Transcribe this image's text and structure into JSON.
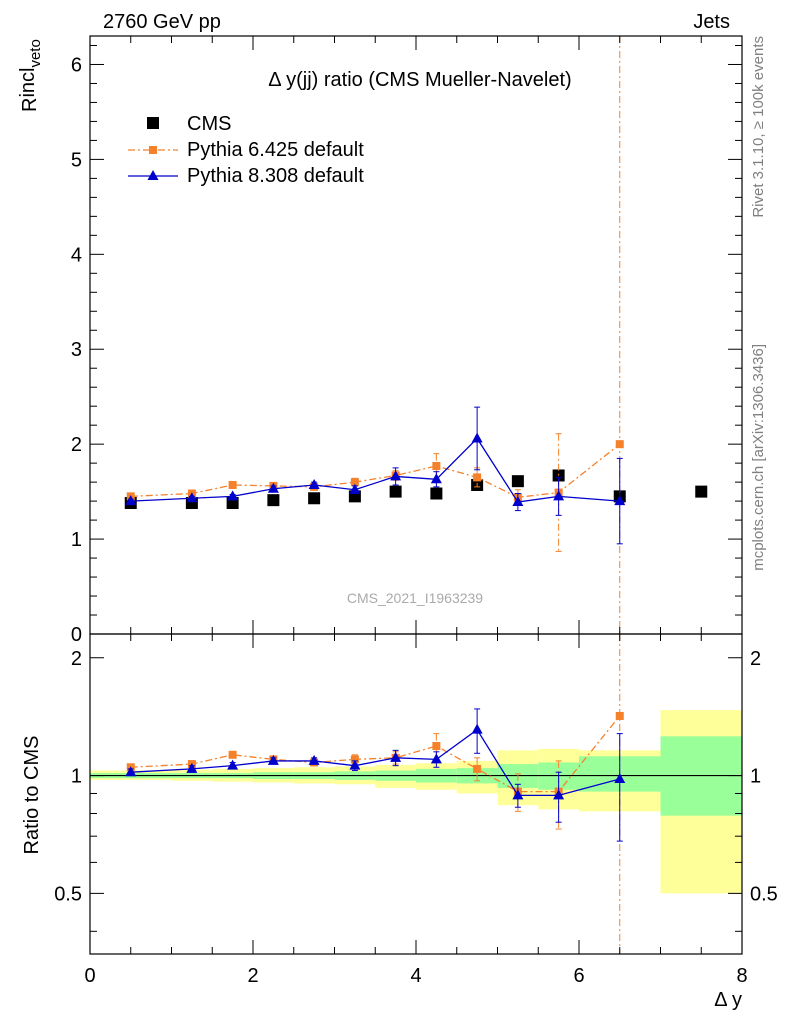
{
  "header": {
    "left": "2760 GeV pp",
    "right": "Jets"
  },
  "side_labels": {
    "rivet": "Rivet 3.1.10, ≥ 100k events",
    "mcplots": "mcplots.cern.ch [arXiv:1306.3436]"
  },
  "chart_data": {
    "type": "scatter",
    "title": "Δ y(jj) ratio (CMS Mueller-Navelet)",
    "watermark": "CMS_2021_I1963239",
    "xlabel": "Δ y",
    "ylabel_main": "R",
    "ylabel_sup": "incl",
    "ylabel_sub": "veto",
    "ylabel_ratio": "Ratio to CMS",
    "xlim": [
      0,
      8
    ],
    "ylim_main": [
      0,
      6.3
    ],
    "ylim_ratio": [
      0.35,
      2.3
    ],
    "x_ticks": [
      0,
      2,
      4,
      6,
      8
    ],
    "y_ticks_main": [
      0,
      1,
      2,
      3,
      4,
      5,
      6
    ],
    "y_ticks_ratio": [
      0.5,
      1,
      2
    ],
    "legend_position": "top-left",
    "bins": [
      [
        0,
        1
      ],
      [
        1,
        1.5
      ],
      [
        1.5,
        2
      ],
      [
        2,
        2.5
      ],
      [
        2.5,
        3
      ],
      [
        3,
        3.5
      ],
      [
        3.5,
        4
      ],
      [
        4,
        4.5
      ],
      [
        4.5,
        5
      ],
      [
        5,
        5.5
      ],
      [
        5.5,
        6
      ],
      [
        6,
        7
      ],
      [
        7,
        8
      ]
    ],
    "series": [
      {
        "name": "CMS",
        "color": "#000000",
        "marker": "square",
        "x": [
          0.5,
          1.25,
          1.75,
          2.25,
          2.75,
          3.25,
          3.75,
          4.25,
          4.75,
          5.25,
          5.75,
          6.5,
          7.5
        ],
        "y": [
          1.38,
          1.38,
          1.38,
          1.41,
          1.43,
          1.45,
          1.5,
          1.48,
          1.57,
          1.61,
          1.67,
          1.45,
          1.5
        ]
      },
      {
        "name": "Pythia 6.425 default",
        "color": "#f5822a",
        "marker": "square-small",
        "dash": "dashdot",
        "x": [
          0.5,
          1.25,
          1.75,
          2.25,
          2.75,
          3.25,
          3.75,
          4.25,
          4.75,
          5.25,
          5.75,
          6.5
        ],
        "y": [
          1.45,
          1.48,
          1.57,
          1.56,
          1.55,
          1.6,
          1.67,
          1.77,
          1.65,
          1.44,
          1.49,
          2.0
        ],
        "yerr": [
          0.02,
          0.02,
          0.02,
          0.03,
          0.03,
          0.04,
          0.05,
          0.13,
          0.1,
          0.08,
          0.62,
          4.4
        ],
        "ratio": [
          1.05,
          1.07,
          1.13,
          1.1,
          1.08,
          1.1,
          1.11,
          1.19,
          1.04,
          0.91,
          0.91,
          1.42
        ],
        "ratio_err": [
          0.02,
          0.02,
          0.02,
          0.02,
          0.02,
          0.03,
          0.04,
          0.09,
          0.07,
          0.1,
          0.18,
          1.5
        ]
      },
      {
        "name": "Pythia 8.308 default",
        "color": "#0000cc",
        "marker": "triangle",
        "dash": "solid",
        "x": [
          0.5,
          1.25,
          1.75,
          2.25,
          2.75,
          3.25,
          3.75,
          4.25,
          4.75,
          5.25,
          5.75,
          6.5
        ],
        "y": [
          1.4,
          1.43,
          1.45,
          1.53,
          1.57,
          1.52,
          1.66,
          1.63,
          2.06,
          1.39,
          1.45,
          1.4
        ],
        "yerr": [
          0.02,
          0.02,
          0.02,
          0.03,
          0.03,
          0.04,
          0.09,
          0.08,
          0.33,
          0.09,
          0.2,
          0.45
        ],
        "ratio": [
          1.02,
          1.04,
          1.06,
          1.09,
          1.09,
          1.06,
          1.11,
          1.1,
          1.31,
          0.89,
          0.89,
          0.98
        ],
        "ratio_err": [
          0.02,
          0.02,
          0.02,
          0.02,
          0.02,
          0.03,
          0.05,
          0.05,
          0.17,
          0.06,
          0.13,
          0.3
        ]
      }
    ],
    "uncertainty_bands": {
      "stat_color": "#99ff99",
      "total_color": "#ffff99",
      "stat_low": [
        0.985,
        0.985,
        0.985,
        0.98,
        0.98,
        0.975,
        0.97,
        0.96,
        0.955,
        0.93,
        0.92,
        0.91,
        0.79
      ],
      "stat_high": [
        1.015,
        1.015,
        1.015,
        1.02,
        1.02,
        1.025,
        1.03,
        1.04,
        1.045,
        1.07,
        1.08,
        1.12,
        1.26
      ],
      "total_low": [
        0.975,
        0.97,
        0.965,
        0.96,
        0.955,
        0.95,
        0.93,
        0.92,
        0.9,
        0.84,
        0.82,
        0.81,
        0.5
      ],
      "total_high": [
        1.03,
        1.035,
        1.04,
        1.045,
        1.05,
        1.055,
        1.065,
        1.075,
        1.09,
        1.16,
        1.17,
        1.16,
        1.47
      ]
    }
  }
}
